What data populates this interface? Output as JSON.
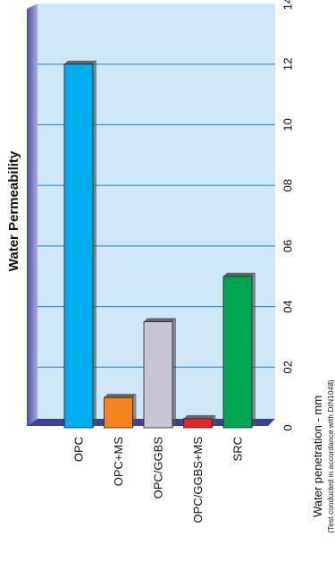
{
  "chart_data": {
    "type": "bar",
    "orientation": "horizontal",
    "title": "Water Permeability",
    "xlabel": "Water penetration - mm",
    "xlabel_note": "(Test conducted in accordance with DIN1048)",
    "categories": [
      "OPC",
      "OPC+MS",
      "OPC/GGBS",
      "OPC/GGBS+MS",
      "SRC"
    ],
    "values": [
      12.0,
      1.0,
      3.5,
      0.3,
      5.0
    ],
    "colors": [
      "#00aeef",
      "#f58220",
      "#c8c5d6",
      "#e3262a",
      "#00a651"
    ],
    "xlim": [
      0,
      14
    ],
    "tick_values": [
      0,
      2,
      4,
      6,
      8,
      10,
      12,
      14
    ],
    "tick_labels": [
      "0",
      "02",
      "04",
      "06",
      "08",
      "10",
      "12",
      "14"
    ],
    "grid": true,
    "plot_background": "#cfe7f7",
    "frame_color": "#5b5fa8"
  }
}
